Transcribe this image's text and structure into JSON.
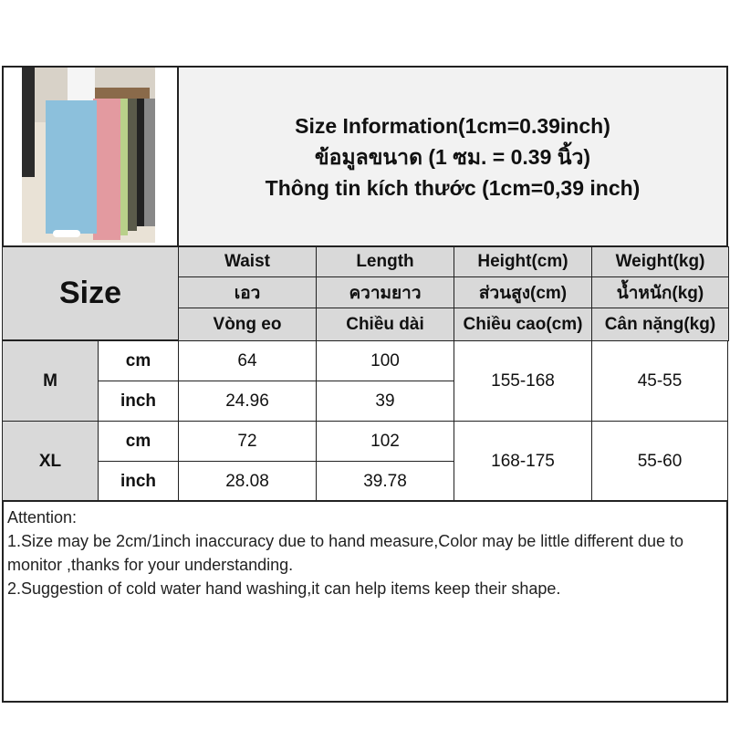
{
  "title": {
    "line1": "Size Information(1cm=0.39inch)",
    "line2": "ข้อมูลขนาด (1 ซม. = 0.39 นิ้ว)",
    "line3": "Thông tin kích thước (1cm=0,39 inch)"
  },
  "photo_alt": "product-photo",
  "table": {
    "size_label": "Size",
    "headers": [
      {
        "en": "Waist",
        "th": "เอว",
        "vi": "Vòng eo"
      },
      {
        "en": "Length",
        "th": "ความยาว",
        "vi": "Chiều dài"
      },
      {
        "en": "Height(cm)",
        "th": "ส่วนสูง(cm)",
        "vi": "Chiều cao(cm)"
      },
      {
        "en": "Weight(kg)",
        "th": "น้ำหนัก(kg)",
        "vi": "Cân nặng(kg)"
      }
    ],
    "rows": [
      {
        "size": "M",
        "cm_label": "cm",
        "inch_label": "inch",
        "waist_cm": "64",
        "length_cm": "100",
        "waist_in": "24.96",
        "length_in": "39",
        "height": "155-168",
        "weight": "45-55"
      },
      {
        "size": "XL",
        "cm_label": "cm",
        "inch_label": "inch",
        "waist_cm": "72",
        "length_cm": "102",
        "waist_in": "28.08",
        "length_in": "39.78",
        "height": "168-175",
        "weight": "55-60"
      }
    ]
  },
  "notes": {
    "title": "Attention:",
    "line1": "1.Size may be 2cm/1inch inaccuracy due to hand measure,Color may be little different due to monitor ,thanks for your understanding.",
    "line2": "2.Suggestion of cold water hand washing,it can help items keep their shape."
  }
}
